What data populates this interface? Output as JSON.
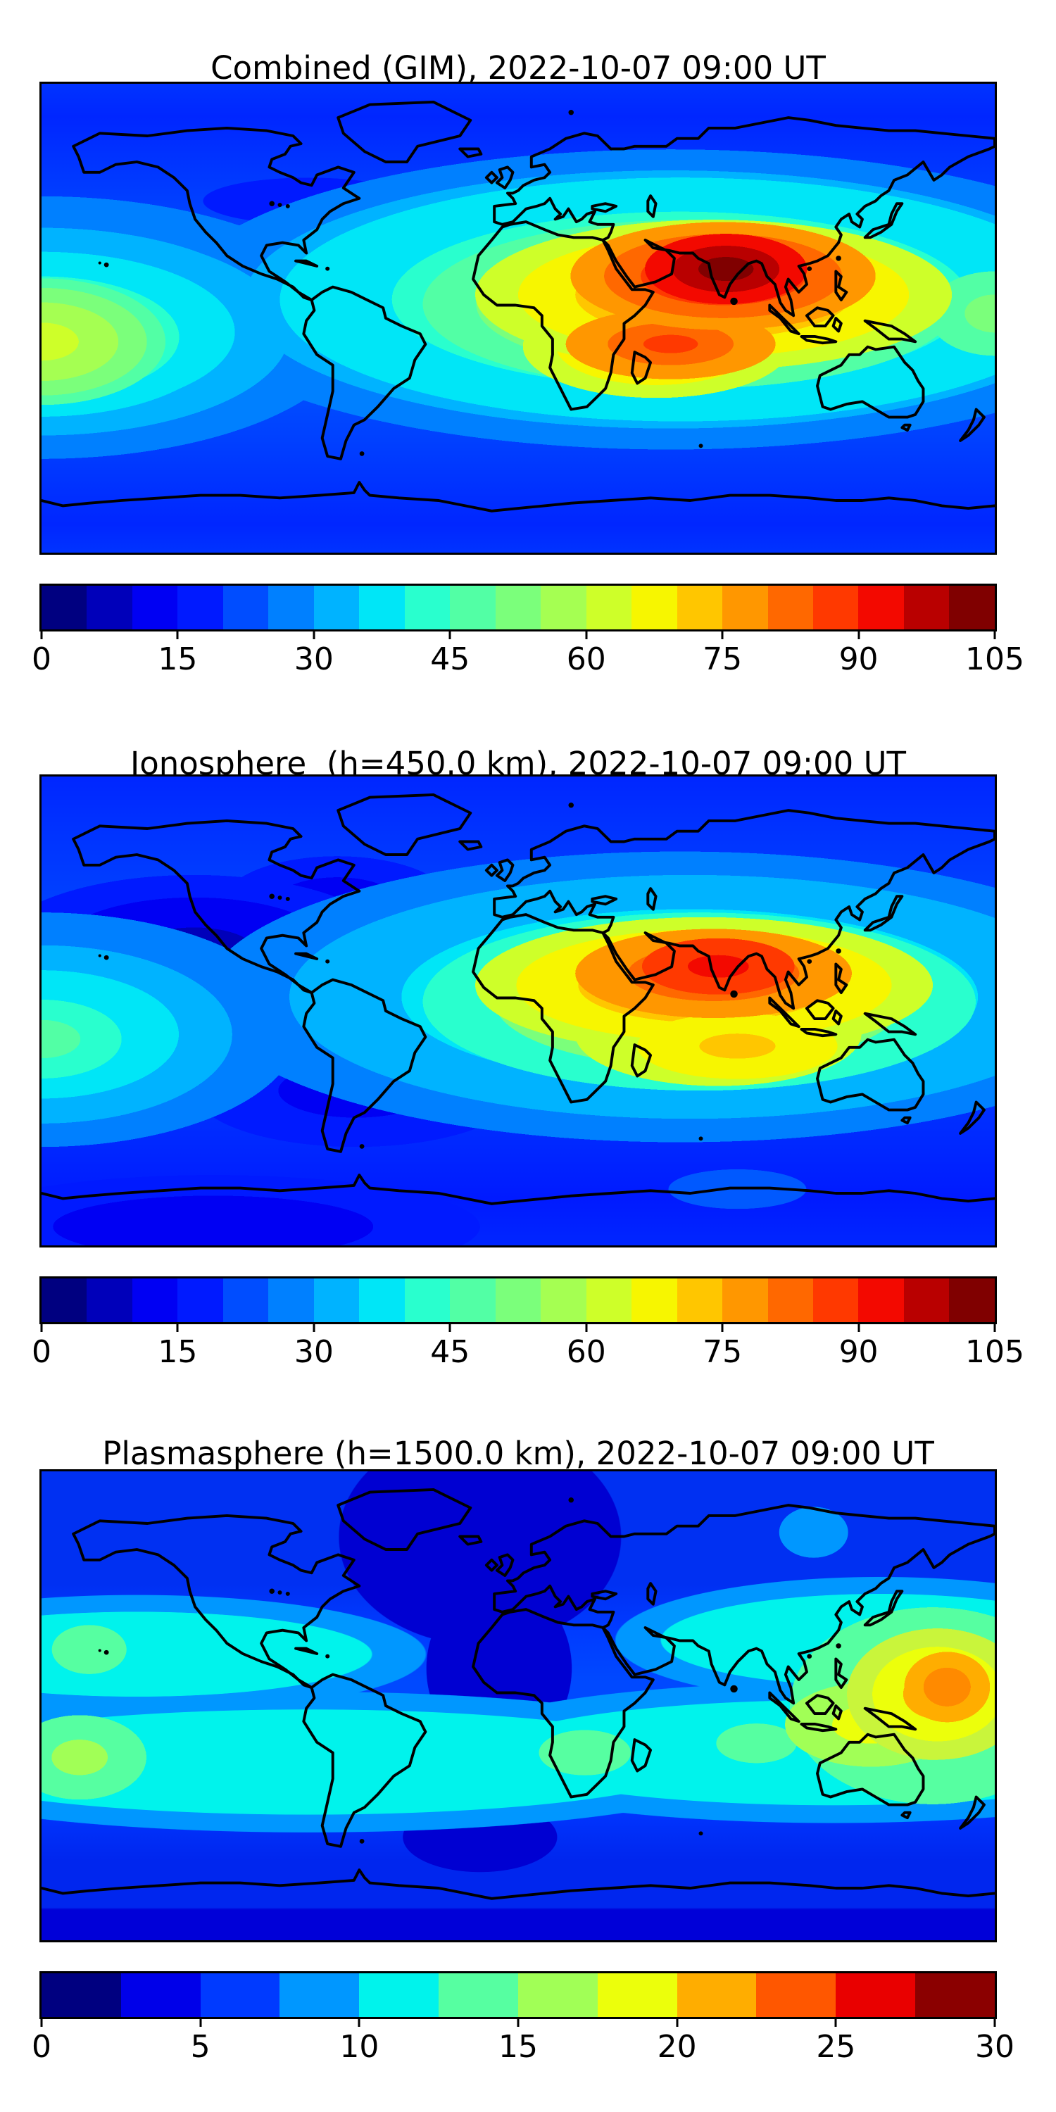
{
  "figure": {
    "background": "#FFFFFF",
    "text_color": "#000000"
  },
  "panels": [
    {
      "title": "Combined (GIM), 2022-10-07 09:00 UT"
    },
    {
      "title": "Ionosphere  (h=450.0 km), 2022-10-07 09:00 UT"
    },
    {
      "title": "Plasmasphere (h=1500.0 km), 2022-10-07 09:00 UT"
    }
  ],
  "chart_data": [
    {
      "type": "heatmap",
      "title": "Combined (GIM), 2022-10-07 09:00 UT",
      "layer": "Combined (GIM)",
      "datetime_ut": "2022-10-07 09:00 UT",
      "projection": "equirectangular world map with black coastlines",
      "map_extent": {
        "lon": [
          -180,
          180
        ],
        "lat": [
          -90,
          90
        ]
      },
      "colorbar": {
        "orientation": "horizontal",
        "colormap": "jet",
        "vmin": 0,
        "vmax": 105,
        "level_step": 5,
        "n_segments": 21,
        "tick_values": [
          0,
          15,
          30,
          45,
          60,
          75,
          90,
          105
        ],
        "tick_labels": [
          "0",
          "15",
          "30",
          "45",
          "60",
          "75",
          "90",
          "105"
        ],
        "segment_colors": [
          "#000080",
          "#0000BA",
          "#0000F3",
          "#001AFF",
          "#004DFF",
          "#0080FF",
          "#00B3FF",
          "#00E6F7",
          "#29FFCE",
          "#52FFA5",
          "#7BFF7B",
          "#A5FF52",
          "#CEFF29",
          "#F7F600",
          "#FFC600",
          "#FF9700",
          "#FF6800",
          "#FF3900",
          "#F30900",
          "#B90000",
          "#800000"
        ]
      },
      "features": [
        {
          "name": "primary-maximum",
          "desc": "dark-red crest over India / South Asia",
          "lon": 78,
          "lat": 18,
          "approx_value": 103
        },
        {
          "name": "secondary-maximum",
          "desc": "red band over equatorial Indian Ocean south of India",
          "lon": 62,
          "lat": -10,
          "approx_value": 84
        },
        {
          "name": "pacific-enhancement",
          "desc": "yellow-green patch at western map edge (central Pacific equator)",
          "lon": -178,
          "lat": -8,
          "approx_value": 55
        },
        {
          "name": "minimum-region",
          "desc": "dark blue over North America / North Atlantic",
          "lon": -75,
          "lat": 42,
          "approx_value": 8
        },
        {
          "name": "south-atlantic-minimum",
          "desc": "dark blue patch off Brazil",
          "lon": -28,
          "lat": -22,
          "approx_value": 10
        }
      ]
    },
    {
      "type": "heatmap",
      "title": "Ionosphere  (h=450.0 km), 2022-10-07 09:00 UT",
      "layer": "Ionosphere (h=450.0 km)",
      "datetime_ut": "2022-10-07 09:00 UT",
      "projection": "equirectangular world map with black coastlines",
      "map_extent": {
        "lon": [
          -180,
          180
        ],
        "lat": [
          -90,
          90
        ]
      },
      "colorbar": {
        "orientation": "horizontal",
        "colormap": "jet",
        "vmin": 0,
        "vmax": 105,
        "level_step": 5,
        "n_segments": 21,
        "tick_values": [
          0,
          15,
          30,
          45,
          60,
          75,
          90,
          105
        ],
        "tick_labels": [
          "0",
          "15",
          "30",
          "45",
          "60",
          "75",
          "90",
          "105"
        ],
        "segment_colors": [
          "#000080",
          "#0000BA",
          "#0000F3",
          "#001AFF",
          "#004DFF",
          "#0080FF",
          "#00B3FF",
          "#00E6F7",
          "#29FFCE",
          "#52FFA5",
          "#7BFF7B",
          "#A5FF52",
          "#CEFF29",
          "#F7F600",
          "#FFC600",
          "#FF9700",
          "#FF6800",
          "#FF3900",
          "#F30900",
          "#B90000",
          "#800000"
        ]
      },
      "features": [
        {
          "name": "primary-maximum",
          "desc": "red crest over Arabian Sea / India",
          "lon": 73,
          "lat": 15,
          "approx_value": 92
        },
        {
          "name": "secondary-maximum",
          "desc": "orange-yellow patch over south equatorial Indian Ocean",
          "lon": 78,
          "lat": -14,
          "approx_value": 72
        },
        {
          "name": "pacific-enhancement",
          "desc": "cyan-green patch at western map edge (central Pacific)",
          "lon": -178,
          "lat": -12,
          "approx_value": 45
        },
        {
          "name": "minimum-region",
          "desc": "very dark blue over North America and North Atlantic",
          "lon": -85,
          "lat": 35,
          "approx_value": 3
        },
        {
          "name": "south-atlantic-minimum",
          "desc": "dark blue over South Atlantic",
          "lon": -30,
          "lat": -30,
          "approx_value": 5
        }
      ]
    },
    {
      "type": "heatmap",
      "title": "Plasmasphere (h=1500.0 km), 2022-10-07 09:00 UT",
      "layer": "Plasmasphere (h=1500.0 km)",
      "datetime_ut": "2022-10-07 09:00 UT",
      "projection": "equirectangular world map with black coastlines",
      "map_extent": {
        "lon": [
          -180,
          180
        ],
        "lat": [
          -90,
          90
        ]
      },
      "colorbar": {
        "orientation": "horizontal",
        "colormap": "jet",
        "vmin": 0,
        "vmax": 30,
        "level_step": 2.5,
        "n_segments": 12,
        "tick_values": [
          0,
          5,
          10,
          15,
          20,
          25,
          30
        ],
        "tick_labels": [
          "0",
          "5",
          "10",
          "15",
          "20",
          "25",
          "30"
        ],
        "segment_colors": [
          "#000080",
          "#0000E9",
          "#003AFF",
          "#0097FF",
          "#00F3EC",
          "#56FFA1",
          "#A1FF56",
          "#ECFF0B",
          "#FFAD00",
          "#FF5700",
          "#E90000",
          "#8B0000"
        ]
      },
      "features": [
        {
          "name": "west-pacific-maximum",
          "desc": "orange blob over western Pacific east of New Guinea / Philippines",
          "lon": 165,
          "lat": 6,
          "approx_value": 27
        },
        {
          "name": "southeast-pacific-enhancement",
          "desc": "yellow-green patch at western map edge, southern tropics",
          "lon": -166,
          "lat": -20,
          "approx_value": 17
        },
        {
          "name": "northeast-pacific-enhancement",
          "desc": "green patch at western map edge, northern tropics",
          "lon": -163,
          "lat": 14,
          "approx_value": 15
        },
        {
          "name": "tropical-cyan-bands",
          "desc": "two cyan latitude bands near +/-25 deg magnetic latitude",
          "approx_value": 11
        },
        {
          "name": "minimum-wedge",
          "desc": "dark navy wedge over Greenland, Europe and down to equatorial Africa",
          "lon": 10,
          "lat": 55,
          "approx_value": 3
        },
        {
          "name": "antarctic-minimum",
          "desc": "dark navy band along Antarctica and south mid-Atlantic blob",
          "lon": -20,
          "lat": -60,
          "approx_value": 3
        }
      ]
    }
  ]
}
